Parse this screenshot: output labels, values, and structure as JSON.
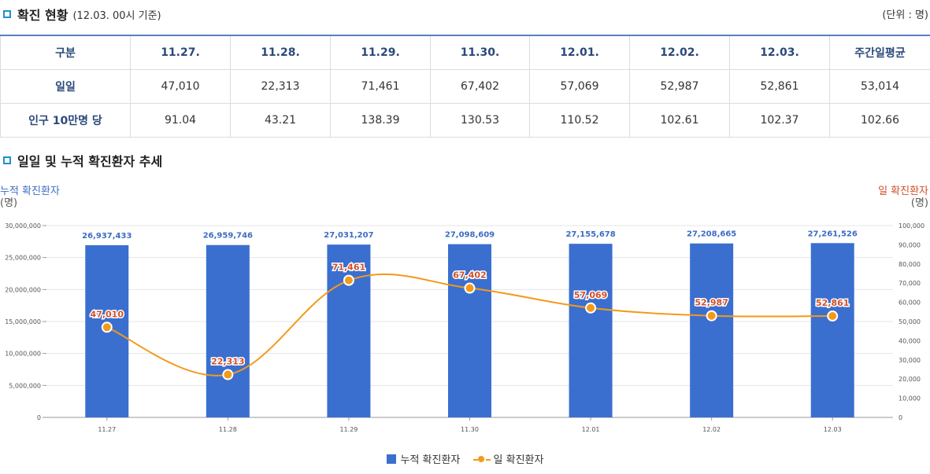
{
  "header": {
    "title": "확진 현황",
    "subtitle": "(12.03. 00시 기준)",
    "unit": "(단위 : 명)"
  },
  "table": {
    "columns": [
      "구분",
      "11.27.",
      "11.28.",
      "11.29.",
      "11.30.",
      "12.01.",
      "12.02.",
      "12.03.",
      "주간일평균"
    ],
    "rows": [
      {
        "label": "일일",
        "values": [
          "47,010",
          "22,313",
          "71,461",
          "67,402",
          "57,069",
          "52,987",
          "52,861",
          "53,014"
        ]
      },
      {
        "label": "인구 10만명 당",
        "values": [
          "91.04",
          "43.21",
          "138.39",
          "130.53",
          "110.52",
          "102.61",
          "102.37",
          "102.66"
        ]
      }
    ]
  },
  "chart_section": {
    "title": "일일 및 누적 확진환자 추세"
  },
  "colors": {
    "bar": "#3a6fcf",
    "line": "#f39a1a",
    "bar_label": "#3b6cc4",
    "line_label": "#d2502a"
  },
  "chart_data": {
    "type": "bar",
    "title": "일일 및 누적 확진환자 추세",
    "categories": [
      "11.27",
      "11.28",
      "11.29",
      "11.30",
      "12.01",
      "12.02",
      "12.03"
    ],
    "series": [
      {
        "name": "누적 확진환자",
        "type": "bar",
        "axis": "left",
        "values": [
          26937433,
          26959746,
          27031207,
          27098609,
          27155678,
          27208665,
          27261526
        ],
        "labels": [
          "26,937,433",
          "26,959,746",
          "27,031,207",
          "27,098,609",
          "27,155,678",
          "27,208,665",
          "27,261,526"
        ]
      },
      {
        "name": "일 확진환자",
        "type": "line",
        "axis": "right",
        "values": [
          47010,
          22313,
          71461,
          67402,
          57069,
          52987,
          52861
        ],
        "labels": [
          "47,010",
          "22,313",
          "71,461",
          "67,402",
          "57,069",
          "52,987",
          "52,861"
        ]
      }
    ],
    "ylabel_left": "누적 확진환자",
    "ylabel_left_unit": "(명)",
    "ylabel_right": "일 확진환자",
    "ylabel_right_unit": "(명)",
    "ylim_left": [
      0,
      30000000
    ],
    "ylim_right": [
      0,
      100000
    ],
    "yticks_left": [
      "0",
      "5,000,000",
      "10,000,000",
      "15,000,000",
      "20,000,000",
      "25,000,000",
      "30,000,000"
    ],
    "yticks_right": [
      "0",
      "10,000",
      "20,000",
      "30,000",
      "40,000",
      "50,000",
      "60,000",
      "70,000",
      "80,000",
      "90,000",
      "100,000"
    ],
    "grid": true,
    "legend": "bottom-center"
  }
}
